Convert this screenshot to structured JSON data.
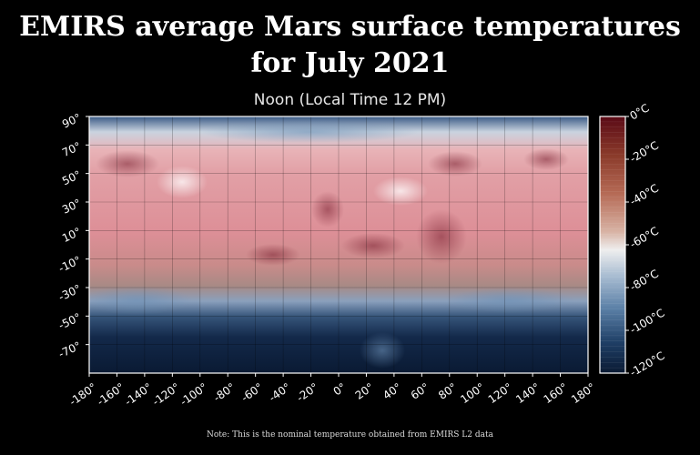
{
  "title_line1": "EMIRS average Mars surface temperatures",
  "title_line2": "for July 2021",
  "subtitle": "Noon (Local Time 12 PM)",
  "note": "Note: This is the nominal temperature obtained from EMIRS L2 data",
  "colors": {
    "background": "#000000",
    "warm": "#6b0f1a",
    "mid_warm": "#d9858b",
    "neutral": "#f2f2f2",
    "cool": "#4a78a6",
    "cold": "#0a1a33"
  },
  "map": {
    "lon_ticks": [
      "-180°",
      "-160°",
      "-140°",
      "-120°",
      "-100°",
      "-80°",
      "-60°",
      "-40°",
      "-20°",
      "0°",
      "20°",
      "40°",
      "60°",
      "80°",
      "100°",
      "120°",
      "140°",
      "160°",
      "180°"
    ],
    "lat_ticks": [
      "90°",
      "70°",
      "50°",
      "30°",
      "10°",
      "-10°",
      "-30°",
      "-50°",
      "-70°"
    ]
  },
  "colorbar": {
    "ticks": [
      "0°C",
      "-20°C",
      "-40°C",
      "-60°C",
      "-80°C",
      "-100°C",
      "-120°C"
    ]
  }
}
